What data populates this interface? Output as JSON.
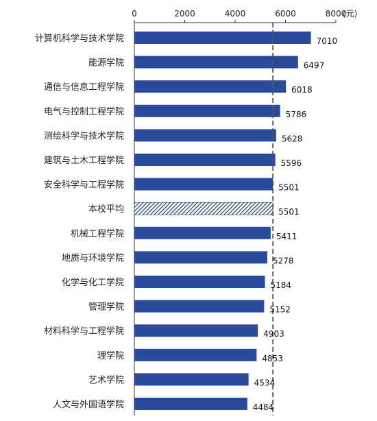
{
  "chart_data": {
    "type": "bar",
    "orientation": "horizontal",
    "unit_label": "(元)",
    "xlim": [
      0,
      8000
    ],
    "x_ticks": [
      0,
      2000,
      4000,
      6000,
      8000
    ],
    "reference_line": {
      "value": 5501,
      "style": "dashed"
    },
    "categories": [
      "计算机科学与技术学院",
      "能源学院",
      "通信与信息工程学院",
      "电气与控制工程学院",
      "测绘科学与技术学院",
      "建筑与土木工程学院",
      "安全科学与工程学院",
      "本校平均",
      "机械工程学院",
      "地质与环境学院",
      "化学与化工学院",
      "管理学院",
      "材料科学与工程学院",
      "理学院",
      "艺术学院",
      "人文与外国语学院"
    ],
    "values": [
      7010,
      6497,
      6018,
      5786,
      5628,
      5596,
      5501,
      5501,
      5411,
      5278,
      5184,
      5152,
      4903,
      4853,
      4534,
      4484
    ],
    "highlighted_category": "本校平均",
    "colors": {
      "bar": "#2a4b9b",
      "highlight_hatch": "#1f3a73",
      "axis": "#333333",
      "reference": "#555555"
    },
    "grid": false
  }
}
